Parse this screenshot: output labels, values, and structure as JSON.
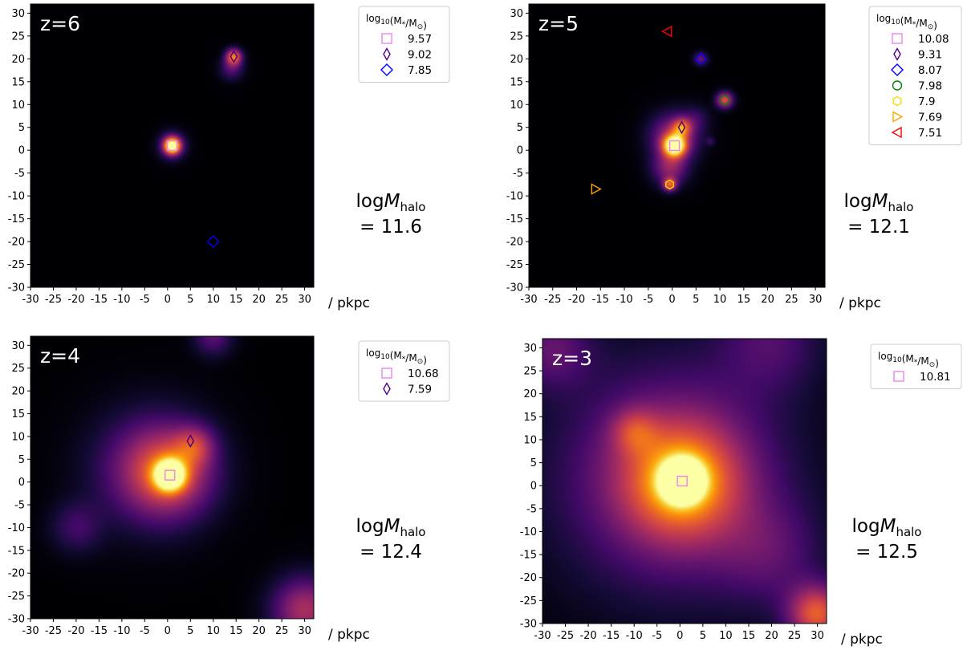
{
  "chart_data": [
    {
      "type": "heatmap",
      "panel_label": "z=6",
      "xlabel": "/ pkpc",
      "ylabel": "",
      "xlim": [
        -30,
        32
      ],
      "ylim": [
        -30,
        32
      ],
      "xticks": [
        -30,
        -25,
        -20,
        -15,
        -10,
        -5,
        0,
        5,
        10,
        15,
        20,
        25,
        30
      ],
      "yticks": [
        -30,
        -25,
        -20,
        -15,
        -10,
        -5,
        0,
        5,
        10,
        15,
        20,
        25,
        30
      ],
      "colormap": "inferno",
      "halo_mass_label": "logMhalo",
      "halo_mass_value": "= 11.6",
      "legend_title": "log10(M*/M⊙)",
      "blobs": [
        {
          "x": 1,
          "y": 1,
          "sigma": 1.2,
          "amp": 0.95
        },
        {
          "x": 1,
          "y": 1,
          "sigma": 2.0,
          "amp": 0.35
        },
        {
          "x": 14.5,
          "y": 20.5,
          "sigma": 1.2,
          "amp": 0.65
        },
        {
          "x": 14,
          "y": 18,
          "sigma": 1.8,
          "amp": 0.25
        }
      ],
      "galaxies": [
        {
          "logM": "9.57",
          "x": 1,
          "y": 1,
          "marker": "square",
          "color": "#ee82ee"
        },
        {
          "logM": "9.02",
          "x": 14.5,
          "y": 20.5,
          "marker": "thin_diamond",
          "color": "#4b0082"
        },
        {
          "logM": "7.85",
          "x": 10,
          "y": -20,
          "marker": "diamond",
          "color": "#0000ff"
        }
      ]
    },
    {
      "type": "heatmap",
      "panel_label": "z=5",
      "xlabel": "/ pkpc",
      "ylabel": "",
      "xlim": [
        -30,
        32
      ],
      "ylim": [
        -30,
        32
      ],
      "xticks": [
        -30,
        -25,
        -20,
        -15,
        -10,
        -5,
        0,
        5,
        10,
        15,
        20,
        25,
        30
      ],
      "yticks": [
        -30,
        -25,
        -20,
        -15,
        -10,
        -5,
        0,
        5,
        10,
        15,
        20,
        25,
        30
      ],
      "colormap": "inferno",
      "halo_mass_label": "logMhalo",
      "halo_mass_value": "= 12.1",
      "legend_title": "log10(M*/M⊙)",
      "blobs": [
        {
          "x": 0.5,
          "y": 1,
          "sigma": 1.6,
          "amp": 1.0
        },
        {
          "x": 0.5,
          "y": 3,
          "sigma": 3.5,
          "amp": 0.45
        },
        {
          "x": -0.5,
          "y": -4,
          "sigma": 2.6,
          "amp": 0.35
        },
        {
          "x": 2,
          "y": 5,
          "sigma": 1.3,
          "amp": 0.45
        },
        {
          "x": -0.5,
          "y": -7.5,
          "sigma": 1.0,
          "amp": 0.55
        },
        {
          "x": 11,
          "y": 11,
          "sigma": 1.2,
          "amp": 0.6
        },
        {
          "x": 6,
          "y": 20,
          "sigma": 1.0,
          "amp": 0.3
        },
        {
          "x": 8,
          "y": 2,
          "sigma": 0.6,
          "amp": 0.15
        },
        {
          "x": 5,
          "y": 7,
          "sigma": 2.0,
          "amp": 0.12
        }
      ],
      "galaxies": [
        {
          "logM": "10.08",
          "x": 0.5,
          "y": 1,
          "marker": "square",
          "color": "#ee82ee"
        },
        {
          "logM": "9.31",
          "x": 2,
          "y": 5,
          "marker": "thin_diamond",
          "color": "#4b0082"
        },
        {
          "logM": "8.07",
          "x": 6,
          "y": 20,
          "marker": "diamond",
          "color": "#0000ff"
        },
        {
          "logM": "7.98",
          "x": 11,
          "y": 11,
          "marker": "circle",
          "color": "#008000"
        },
        {
          "logM": "7.9",
          "x": -0.5,
          "y": -7.5,
          "marker": "hexagon",
          "color": "#ffd700"
        },
        {
          "logM": "7.69",
          "x": -16,
          "y": -8.5,
          "marker": "triangle_right",
          "color": "#ffa500"
        },
        {
          "logM": "7.51",
          "x": -1,
          "y": 26,
          "marker": "triangle_left",
          "color": "#ff0000"
        }
      ]
    },
    {
      "type": "heatmap",
      "panel_label": "z=4",
      "xlabel": "/ pkpc",
      "ylabel": "",
      "xlim": [
        -30,
        32
      ],
      "ylim": [
        -30,
        32
      ],
      "xticks": [
        -30,
        -25,
        -20,
        -15,
        -10,
        -5,
        0,
        5,
        10,
        15,
        20,
        25,
        30
      ],
      "yticks": [
        -30,
        -25,
        -20,
        -15,
        -10,
        -5,
        0,
        5,
        10,
        15,
        20,
        25,
        30
      ],
      "colormap": "inferno",
      "halo_mass_label": "logMhalo",
      "halo_mass_value": "= 12.4",
      "legend_title": "log10(M*/M⊙)",
      "blobs": [
        {
          "x": 0.5,
          "y": 1.5,
          "sigma": 2.2,
          "amp": 1.0
        },
        {
          "x": 0.5,
          "y": 2,
          "sigma": 6.5,
          "amp": 0.45
        },
        {
          "x": -4,
          "y": 3,
          "sigma": 9.0,
          "amp": 0.28
        },
        {
          "x": 6,
          "y": 8,
          "sigma": 3.0,
          "amp": 0.3
        },
        {
          "x": -20,
          "y": -10,
          "sigma": 4.0,
          "amp": 0.18
        },
        {
          "x": 30,
          "y": -28,
          "sigma": 5.0,
          "amp": 0.45
        },
        {
          "x": 10,
          "y": 32,
          "sigma": 3.0,
          "amp": 0.25
        }
      ],
      "galaxies": [
        {
          "logM": "10.68",
          "x": 0.5,
          "y": 1.5,
          "marker": "square",
          "color": "#ee82ee"
        },
        {
          "logM": "7.59",
          "x": 5,
          "y": 9,
          "marker": "thin_diamond",
          "color": "#4b0082"
        }
      ]
    },
    {
      "type": "heatmap",
      "panel_label": "z=3",
      "xlabel": "/ pkpc",
      "ylabel": "",
      "xlim": [
        -30,
        32
      ],
      "ylim": [
        -30,
        32
      ],
      "xticks": [
        -30,
        -25,
        -20,
        -15,
        -10,
        -5,
        0,
        5,
        10,
        15,
        20,
        25,
        30
      ],
      "yticks": [
        -30,
        -25,
        -20,
        -15,
        -10,
        -5,
        0,
        5,
        10,
        15,
        20,
        25,
        30
      ],
      "colormap": "inferno",
      "halo_mass_label": "logMhalo",
      "halo_mass_value": "= 12.5",
      "legend_title": "log10(M*/M⊙)",
      "blobs": [
        {
          "x": 0.5,
          "y": 1,
          "sigma": 3.0,
          "amp": 1.1
        },
        {
          "x": 0.5,
          "y": 1,
          "sigma": 9.0,
          "amp": 0.55
        },
        {
          "x": -2,
          "y": 2,
          "sigma": 18.0,
          "amp": 0.35
        },
        {
          "x": -10,
          "y": 12,
          "sigma": 3.5,
          "amp": 0.25
        },
        {
          "x": 20,
          "y": -15,
          "sigma": 8.0,
          "amp": 0.18
        },
        {
          "x": 30,
          "y": -28,
          "sigma": 4.5,
          "amp": 0.6
        },
        {
          "x": -28,
          "y": 30,
          "sigma": 6.0,
          "amp": 0.25
        },
        {
          "x": 20,
          "y": 32,
          "sigma": 8.0,
          "amp": 0.2
        }
      ],
      "galaxies": [
        {
          "logM": "10.81",
          "x": 0.5,
          "y": 1,
          "marker": "square",
          "color": "#ee82ee"
        }
      ]
    }
  ]
}
